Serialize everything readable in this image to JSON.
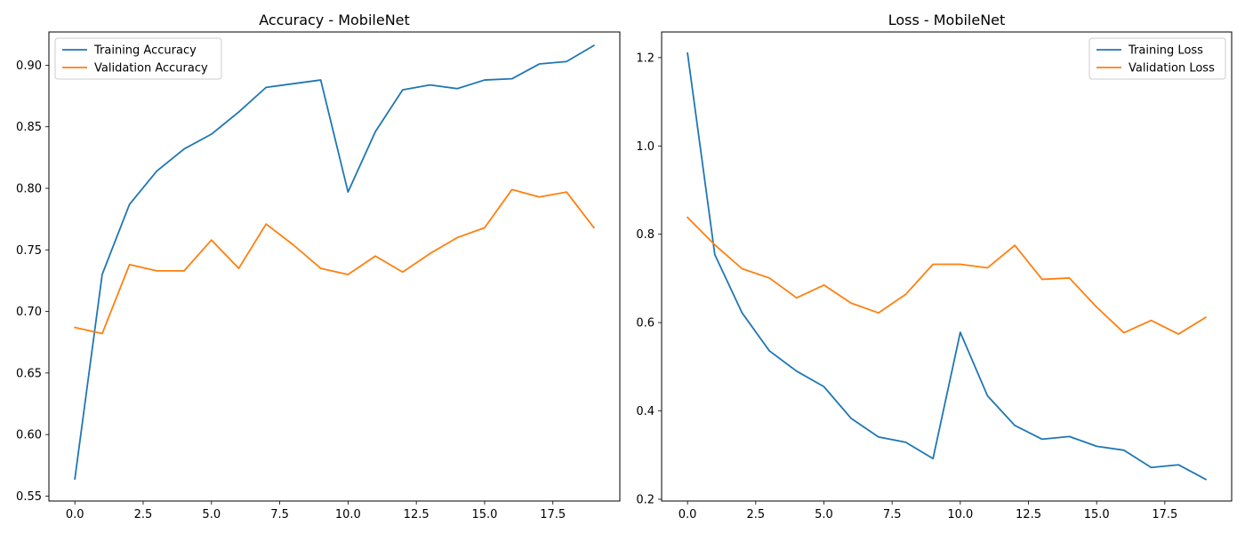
{
  "chart_data": [
    {
      "type": "line",
      "title": "Accuracy - MobileNet",
      "xlabel": "",
      "ylabel": "",
      "x": [
        0,
        1,
        2,
        3,
        4,
        5,
        6,
        7,
        8,
        9,
        10,
        11,
        12,
        13,
        14,
        15,
        16,
        17,
        18,
        19
      ],
      "xlim": [
        -0.95,
        19.95
      ],
      "ylim": [
        0.546,
        0.927
      ],
      "xticks": [
        0,
        2.5,
        5,
        7.5,
        10,
        12.5,
        15,
        17.5
      ],
      "xtick_labels": [
        "0.0",
        "2.5",
        "5.0",
        "7.5",
        "10.0",
        "12.5",
        "15.0",
        "17.5"
      ],
      "yticks": [
        0.55,
        0.6,
        0.65,
        0.7,
        0.75,
        0.8,
        0.85,
        0.9
      ],
      "ytick_labels": [
        "0.55",
        "0.60",
        "0.65",
        "0.70",
        "0.75",
        "0.80",
        "0.85",
        "0.90"
      ],
      "grid": false,
      "legend_position": "top-left",
      "series": [
        {
          "name": "Training Accuracy",
          "color": "#1f77b4",
          "values": [
            0.564,
            0.73,
            0.787,
            0.814,
            0.832,
            0.844,
            0.862,
            0.882,
            0.885,
            0.888,
            0.797,
            0.846,
            0.88,
            0.884,
            0.881,
            0.888,
            0.889,
            0.901,
            0.903,
            0.916
          ]
        },
        {
          "name": "Validation Accuracy",
          "color": "#ff7f0e",
          "values": [
            0.687,
            0.682,
            0.738,
            0.733,
            0.733,
            0.758,
            0.735,
            0.771,
            0.754,
            0.735,
            0.73,
            0.745,
            0.732,
            0.747,
            0.76,
            0.768,
            0.799,
            0.793,
            0.797,
            0.768
          ]
        }
      ]
    },
    {
      "type": "line",
      "title": "Loss - MobileNet",
      "xlabel": "",
      "ylabel": "",
      "x": [
        0,
        1,
        2,
        3,
        4,
        5,
        6,
        7,
        8,
        9,
        10,
        11,
        12,
        13,
        14,
        15,
        16,
        17,
        18,
        19
      ],
      "xlim": [
        -0.95,
        19.95
      ],
      "ylim": [
        0.196,
        1.258
      ],
      "xticks": [
        0,
        2.5,
        5,
        7.5,
        10,
        12.5,
        15,
        17.5
      ],
      "xtick_labels": [
        "0.0",
        "2.5",
        "5.0",
        "7.5",
        "10.0",
        "12.5",
        "15.0",
        "17.5"
      ],
      "yticks": [
        0.2,
        0.4,
        0.6,
        0.8,
        1.0,
        1.2
      ],
      "ytick_labels": [
        "0.2",
        "0.4",
        "0.6",
        "0.8",
        "1.0",
        "1.2"
      ],
      "grid": false,
      "legend_position": "top-right",
      "series": [
        {
          "name": "Training Loss",
          "color": "#1f77b4",
          "values": [
            1.21,
            0.754,
            0.622,
            0.536,
            0.49,
            0.455,
            0.383,
            0.341,
            0.329,
            0.292,
            0.578,
            0.434,
            0.367,
            0.336,
            0.342,
            0.32,
            0.311,
            0.272,
            0.278,
            0.245
          ]
        },
        {
          "name": "Validation Loss",
          "color": "#ff7f0e",
          "values": [
            0.838,
            0.776,
            0.722,
            0.701,
            0.656,
            0.685,
            0.644,
            0.622,
            0.664,
            0.732,
            0.732,
            0.724,
            0.775,
            0.698,
            0.701,
            0.635,
            0.577,
            0.605,
            0.574,
            0.612
          ]
        }
      ]
    }
  ]
}
